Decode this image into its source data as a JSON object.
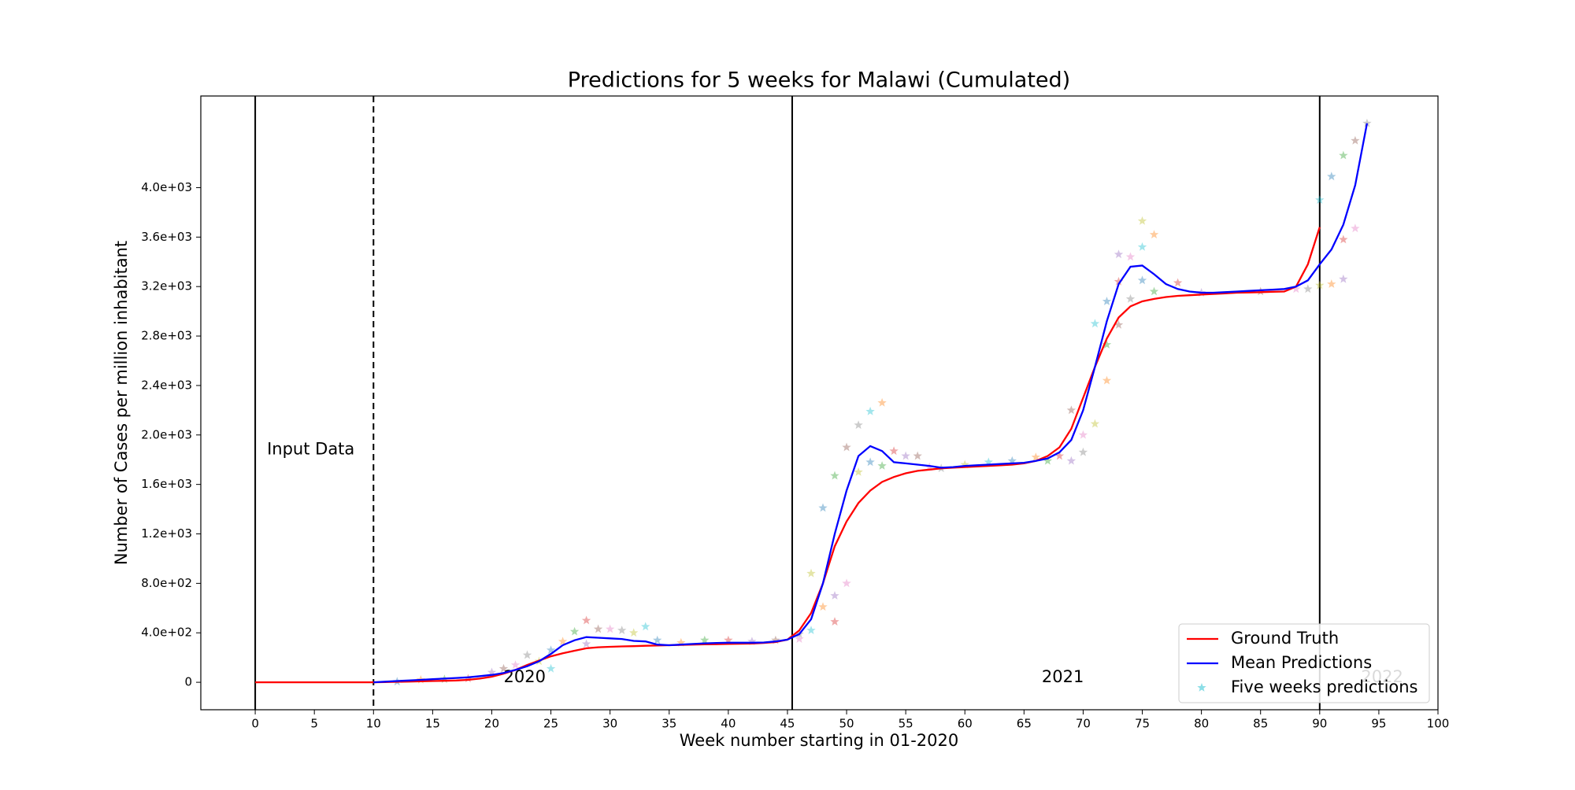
{
  "chart_data": {
    "type": "line",
    "title": "Predictions for 5 weeks for Malawi (Cumulated)",
    "xlabel": "Week number starting in 01-2020",
    "ylabel": "Number of Cases per million inhabitant",
    "xlim": [
      -4.6,
      100
    ],
    "ylim": [
      -222,
      4741
    ],
    "xticks": [
      0,
      5,
      10,
      15,
      20,
      25,
      30,
      35,
      40,
      45,
      50,
      55,
      60,
      65,
      70,
      75,
      80,
      85,
      90,
      95,
      100
    ],
    "yticks": [
      0,
      {
        "value": 400,
        "label": "4.0e+02"
      },
      {
        "value": 800,
        "label": "8.0e+02"
      },
      {
        "value": 1200,
        "label": "1.2e+03"
      },
      {
        "value": 1600,
        "label": "1.6e+03"
      },
      {
        "value": 2000,
        "label": "2.0e+03"
      },
      {
        "value": 2400,
        "label": "2.4e+03"
      },
      {
        "value": 2800,
        "label": "2.8e+03"
      },
      {
        "value": 3200,
        "label": "3.2e+03"
      },
      {
        "value": 3600,
        "label": "3.6e+03"
      },
      {
        "value": 4000,
        "label": "4.0e+03"
      }
    ],
    "vlines": [
      {
        "x": 0,
        "style": "solid"
      },
      {
        "x": 10,
        "style": "dashed"
      },
      {
        "x": 45.4,
        "style": "solid"
      },
      {
        "x": 90,
        "style": "solid"
      }
    ],
    "annotations": [
      {
        "text": "Input Data",
        "x": 1,
        "y": 1880,
        "color": "#000000"
      },
      {
        "text": "2020",
        "x": 21,
        "y": 40,
        "color": "#000000"
      },
      {
        "text": "2021",
        "x": 66.5,
        "y": 40,
        "color": "#000000"
      },
      {
        "text": "2022",
        "x": 93.5,
        "y": 40,
        "color": "#bbbbbb"
      }
    ],
    "legend": "lower right",
    "series": [
      {
        "name": "Ground Truth",
        "type": "line",
        "color": "#ff0000",
        "x": [
          0,
          1,
          2,
          3,
          4,
          5,
          6,
          7,
          8,
          9,
          10,
          11,
          12,
          13,
          14,
          15,
          16,
          17,
          18,
          19,
          20,
          21,
          22,
          23,
          24,
          25,
          26,
          27,
          28,
          29,
          30,
          31,
          32,
          33,
          34,
          35,
          36,
          37,
          38,
          39,
          40,
          41,
          42,
          43,
          44,
          45,
          46,
          47,
          48,
          49,
          50,
          51,
          52,
          53,
          54,
          55,
          56,
          57,
          58,
          59,
          60,
          61,
          62,
          63,
          64,
          65,
          66,
          67,
          68,
          69,
          70,
          71,
          72,
          73,
          74,
          75,
          76,
          77,
          78,
          79,
          80,
          81,
          82,
          83,
          84,
          85,
          86,
          87,
          88,
          89,
          90
        ],
        "values": [
          0,
          0,
          0,
          0,
          0,
          0,
          0,
          0,
          0,
          0,
          0,
          2,
          4,
          6,
          8,
          10,
          12,
          15,
          20,
          30,
          45,
          70,
          100,
          140,
          175,
          210,
          235,
          255,
          275,
          283,
          287,
          290,
          292,
          295,
          297,
          300,
          302,
          305,
          307,
          308,
          310,
          312,
          314,
          318,
          325,
          345,
          420,
          560,
          800,
          1100,
          1300,
          1450,
          1550,
          1620,
          1660,
          1690,
          1710,
          1720,
          1730,
          1735,
          1740,
          1745,
          1750,
          1755,
          1760,
          1770,
          1790,
          1830,
          1900,
          2050,
          2300,
          2550,
          2780,
          2950,
          3040,
          3080,
          3100,
          3115,
          3125,
          3130,
          3135,
          3140,
          3145,
          3150,
          3152,
          3155,
          3158,
          3160,
          3200,
          3380,
          3680
        ]
      },
      {
        "name": "Mean Predictions",
        "type": "line",
        "color": "#0000ff",
        "x": [
          10,
          11,
          12,
          13,
          14,
          15,
          16,
          17,
          18,
          19,
          20,
          21,
          22,
          23,
          24,
          25,
          26,
          27,
          28,
          29,
          30,
          31,
          32,
          33,
          34,
          35,
          36,
          37,
          38,
          39,
          40,
          41,
          42,
          43,
          44,
          45,
          46,
          47,
          48,
          49,
          50,
          51,
          52,
          53,
          54,
          55,
          56,
          57,
          58,
          59,
          60,
          61,
          62,
          63,
          64,
          65,
          66,
          67,
          68,
          69,
          70,
          71,
          72,
          73,
          74,
          75,
          76,
          77,
          78,
          79,
          80,
          81,
          82,
          83,
          84,
          85,
          86,
          87,
          88,
          89,
          90,
          91,
          92,
          93,
          94
        ],
        "values": [
          0,
          5,
          10,
          15,
          20,
          25,
          30,
          35,
          40,
          50,
          60,
          75,
          100,
          130,
          170,
          230,
          300,
          340,
          365,
          360,
          355,
          350,
          335,
          330,
          305,
          300,
          305,
          310,
          315,
          318,
          320,
          320,
          320,
          322,
          330,
          345,
          390,
          510,
          800,
          1200,
          1550,
          1830,
          1910,
          1870,
          1780,
          1770,
          1760,
          1750,
          1735,
          1740,
          1750,
          1755,
          1760,
          1765,
          1770,
          1775,
          1790,
          1810,
          1860,
          1960,
          2200,
          2550,
          2920,
          3220,
          3360,
          3370,
          3300,
          3220,
          3180,
          3160,
          3150,
          3150,
          3155,
          3160,
          3165,
          3170,
          3175,
          3180,
          3200,
          3250,
          3380,
          3500,
          3700,
          4020,
          4520
        ]
      },
      {
        "name": "Five weeks predictions",
        "type": "scatter",
        "color": "#17becf",
        "palette": [
          "#1f77b4",
          "#ff7f0e",
          "#2ca02c",
          "#d62728",
          "#9467bd",
          "#8c564b",
          "#e377c2",
          "#7f7f7f",
          "#bcbd22",
          "#17becf"
        ],
        "x": [
          12,
          14,
          16,
          18,
          20,
          21,
          22,
          23,
          24,
          25,
          25,
          26,
          27,
          28,
          28,
          29,
          30,
          31,
          32,
          33,
          34,
          36,
          38,
          40,
          42,
          44,
          46,
          46,
          47,
          47,
          48,
          48,
          49,
          49,
          49,
          50,
          50,
          51,
          51,
          52,
          52,
          53,
          53,
          54,
          55,
          56,
          57,
          58,
          60,
          62,
          64,
          66,
          67,
          68,
          69,
          69,
          70,
          70,
          71,
          71,
          72,
          72,
          72,
          73,
          73,
          73,
          74,
          74,
          75,
          75,
          75,
          76,
          76,
          78,
          80,
          85,
          88,
          89,
          90,
          90,
          91,
          91,
          92,
          92,
          92,
          93,
          93,
          94
        ],
        "values": [
          5,
          20,
          25,
          30,
          80,
          110,
          140,
          220,
          170,
          110,
          260,
          330,
          410,
          500,
          310,
          430,
          430,
          420,
          400,
          450,
          340,
          320,
          340,
          340,
          330,
          340,
          350,
          390,
          880,
          420,
          1410,
          610,
          1670,
          490,
          700,
          1900,
          800,
          2080,
          1700,
          2190,
          1780,
          2260,
          1750,
          1870,
          1830,
          1830,
          1740,
          1730,
          1760,
          1780,
          1790,
          1820,
          1790,
          1830,
          1790,
          2200,
          2000,
          1860,
          2090,
          2900,
          3080,
          2440,
          2730,
          3240,
          3460,
          2890,
          3440,
          3100,
          3730,
          3520,
          3250,
          3620,
          3160,
          3230,
          3150,
          3160,
          3180,
          3180,
          3210,
          3900,
          4090,
          3220,
          4260,
          3580,
          3260,
          4380,
          3670,
          4520
        ]
      }
    ]
  }
}
